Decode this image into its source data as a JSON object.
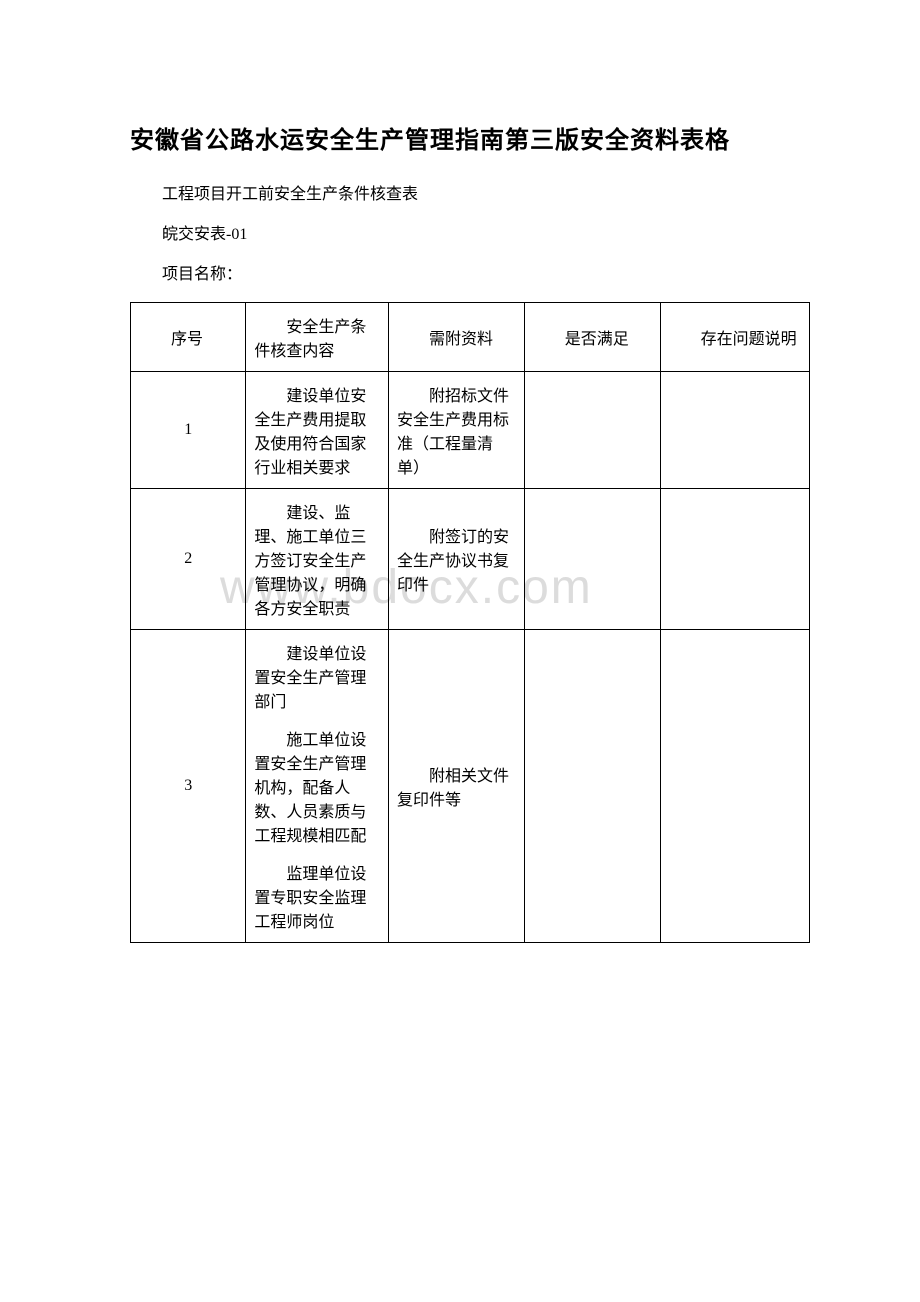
{
  "doc": {
    "title": "安徽省公路水运安全生产管理指南第三版安全资料表格",
    "subtitle": "工程项目开工前安全生产条件核查表",
    "form_code": "皖交安表-01",
    "project_label": "项目名称：",
    "watermark": "www.bdocx.com"
  },
  "table": {
    "headers": {
      "c1": "序号",
      "c2": "安全生产条件核查内容",
      "c3": "需附资料",
      "c4": "是否满足",
      "c5": "存在问题说明"
    },
    "rows": [
      {
        "seq": "1",
        "content": "建设单位安全生产费用提取及使用符合国家行业相关要求",
        "material": "附招标文件安全生产费用标准（工程量清单）",
        "satisfy": "",
        "issue": ""
      },
      {
        "seq": "2",
        "content": "建设、监理、施工单位三方签订安全生产管理协议，明确各方安全职责",
        "material": "附签订的安全生产协议书复印件",
        "satisfy": "",
        "issue": ""
      },
      {
        "seq": "3",
        "content_p1": "建设单位设置安全生产管理部门",
        "content_p2": "施工单位设置安全生产管理机构，配备人数、人员素质与工程规模相匹配",
        "content_p3": "监理单位设置专职安全监理工程师岗位",
        "material": "附相关文件复印件等",
        "satisfy": "",
        "issue": ""
      }
    ]
  },
  "style": {
    "text_color": "#000000",
    "border_color": "#000000",
    "background_color": "#ffffff",
    "watermark_color": "#dcdcdc",
    "title_fontsize": 24,
    "body_fontsize": 16
  }
}
